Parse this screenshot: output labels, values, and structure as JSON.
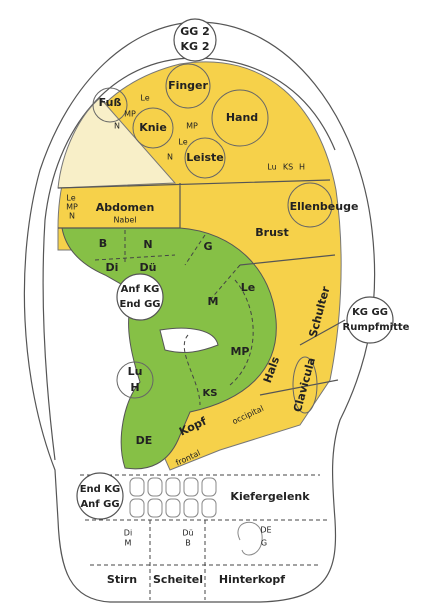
{
  "labels": [
    "GG 2",
    "KG 2",
    "Finger",
    "Fuß",
    "Le",
    "MP",
    "N",
    "Knie",
    "MP",
    "Hand",
    "Le",
    "N",
    "Leiste",
    "Lu",
    "KS",
    "H",
    "Ellenbeuge",
    "Le",
    "MP",
    "N",
    "Abdomen",
    "Nabel",
    "B",
    "N",
    "G",
    "Brust",
    "Di",
    "Dü",
    "Le",
    "Anf KG",
    "End GG",
    "M",
    "Schulter",
    "KG GG",
    "Rumpfmitte",
    "Lu",
    "H",
    "MP",
    "Hals",
    "Clavicula",
    "KS",
    "Kopf",
    "occipital",
    "frontal",
    "DE",
    "End KG",
    "Anf GG",
    "Kiefergelenk",
    "Di",
    "M",
    "Dü",
    "B",
    "DE",
    "G",
    "Stirn",
    "Scheitel",
    "Hinterkopf"
  ]
}
